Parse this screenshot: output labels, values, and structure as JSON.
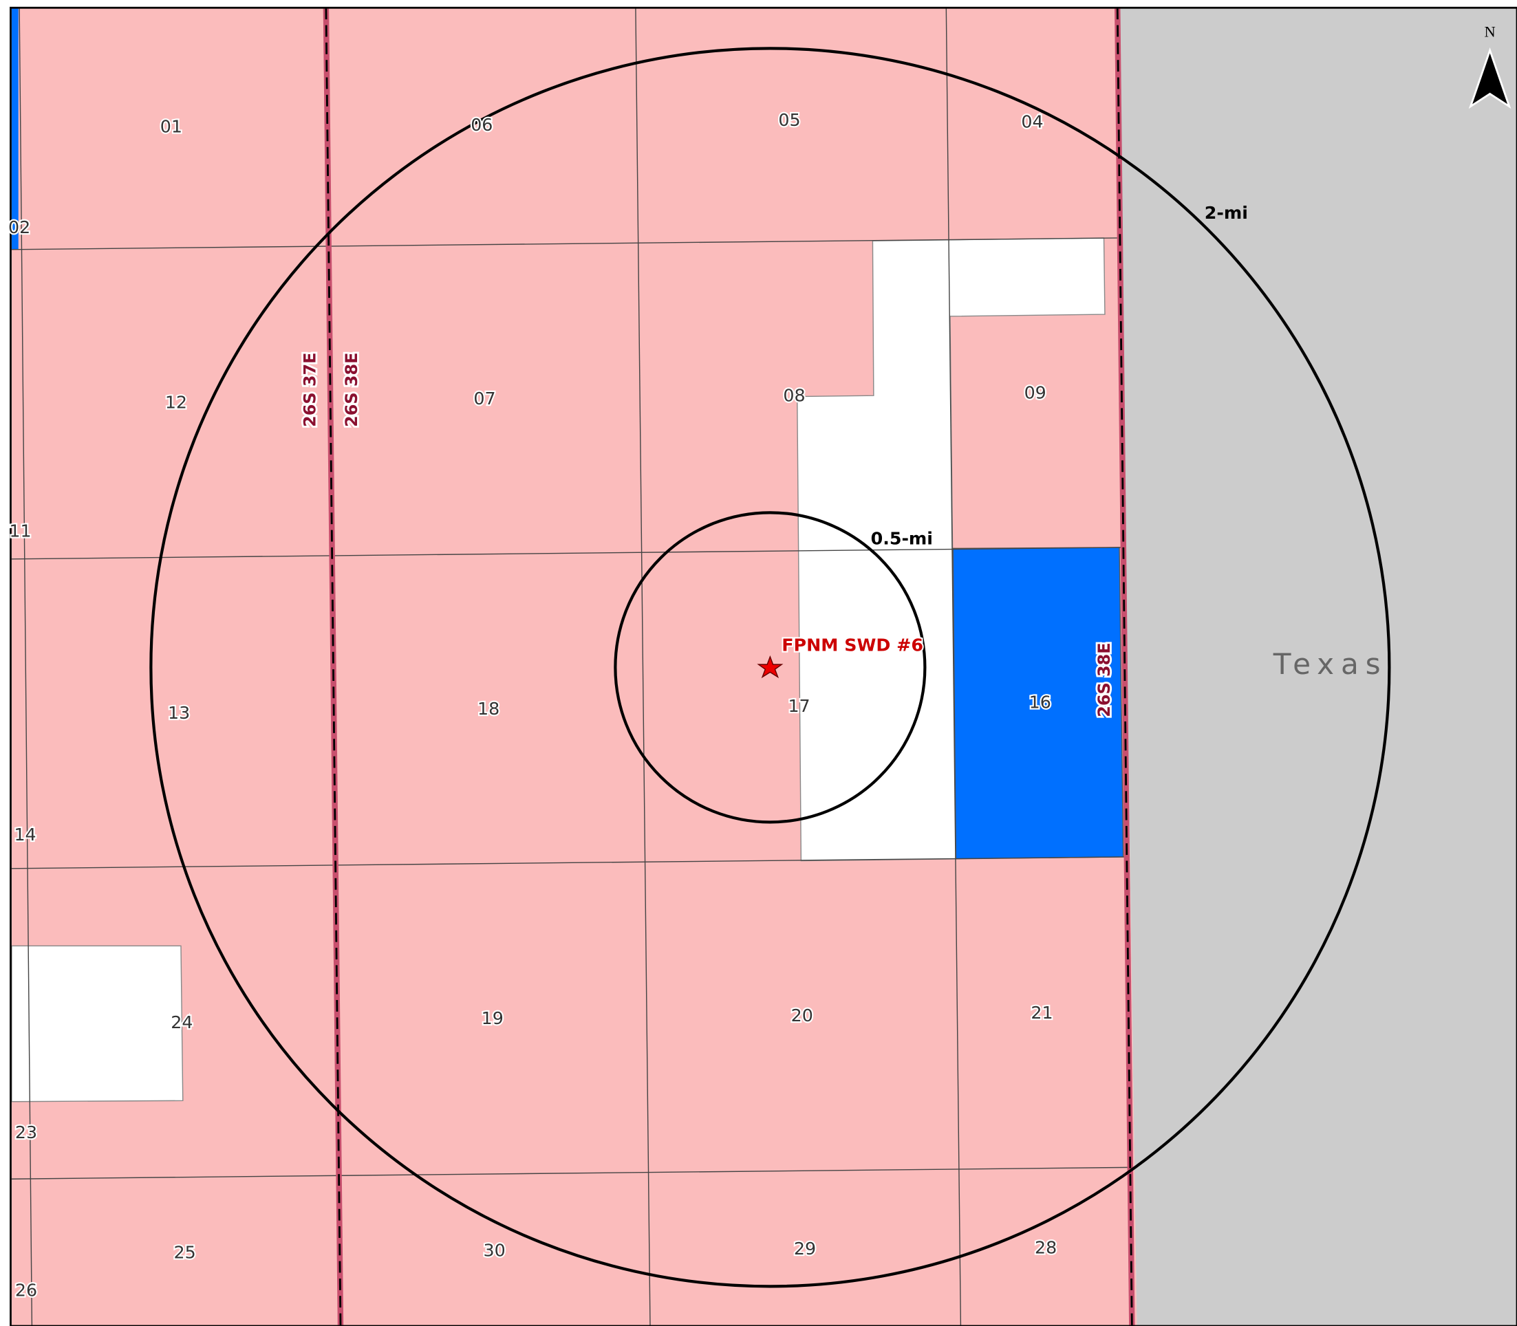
{
  "map": {
    "north": "N",
    "sections": [
      "01",
      "06",
      "05",
      "04",
      "02",
      "12",
      "07",
      "08",
      "09",
      "11",
      "13",
      "18",
      "17",
      "16",
      "14",
      "24",
      "19",
      "20",
      "21",
      "23",
      "25",
      "30",
      "29",
      "28",
      "26"
    ],
    "townships": [
      "26S 37E",
      "26S 38E",
      "26S 38E"
    ],
    "well": "FPNM SWD #6",
    "buffers": [
      "2-mi",
      "0.5-mi"
    ],
    "state": "Texas"
  }
}
